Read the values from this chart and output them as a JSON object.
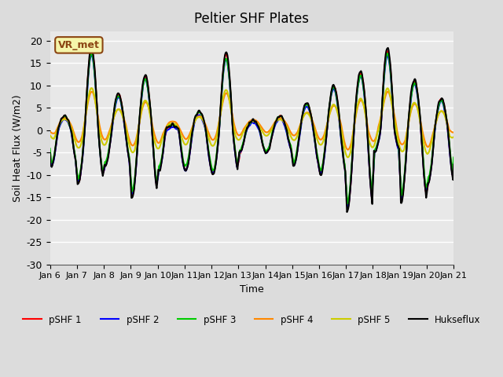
{
  "title": "Peltier SHF Plates",
  "xlabel": "Time",
  "ylabel": "Soil Heat Flux (W/m2)",
  "ylim": [
    -30,
    22
  ],
  "yticks": [
    -30,
    -25,
    -20,
    -15,
    -10,
    -5,
    0,
    5,
    10,
    15,
    20
  ],
  "xtick_labels": [
    "Jan 6",
    "Jan 7",
    "Jan 8",
    "Jan 9",
    "Jan 10",
    "Jan 11",
    "Jan 12",
    "Jan 13",
    "Jan 14",
    "Jan 15",
    "Jan 16",
    "Jan 17",
    "Jan 18",
    "Jan 19",
    "Jan 20",
    "Jan 21"
  ],
  "bg_color": "#dcdcdc",
  "plot_bg_color": "#e8e8e8",
  "grid_color": "#ffffff",
  "annotation_text": "VR_met",
  "annotation_bg": "#f5f5aa",
  "annotation_border": "#8b4513",
  "colors": {
    "pSHF1": "#ff0000",
    "pSHF2": "#0000ff",
    "pSHF3": "#00cc00",
    "pSHF4": "#ff8800",
    "pSHF5": "#cccc00",
    "Hukseflux": "#000000"
  },
  "legend_labels": [
    "pSHF 1",
    "pSHF 2",
    "pSHF 3",
    "pSHF 4",
    "pSHF 5",
    "Hukseflux"
  ],
  "linewidth": 1.5
}
